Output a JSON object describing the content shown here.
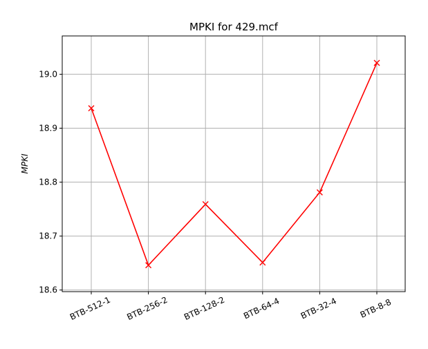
{
  "chart_data": {
    "type": "line",
    "title": "MPKI for 429.mcf",
    "xlabel": "",
    "ylabel": "MPKI",
    "categories": [
      "BTB-512-1",
      "BTB-256-2",
      "BTB-128-2",
      "BTB-64-4",
      "BTB-32-4",
      "BTB-8-8"
    ],
    "series": [
      {
        "values": [
          18.937,
          18.646,
          18.759,
          18.651,
          18.781,
          19.021
        ],
        "color": "#ff0000",
        "marker": "x"
      }
    ],
    "ylim": [
      18.597,
      19.071
    ],
    "yticks": [
      18.6,
      18.7,
      18.8,
      18.9,
      19.0
    ],
    "ytick_labels": [
      "18.6",
      "18.7",
      "18.8",
      "18.9",
      "19.0"
    ],
    "grid": true,
    "xtick_rotation": 25
  }
}
